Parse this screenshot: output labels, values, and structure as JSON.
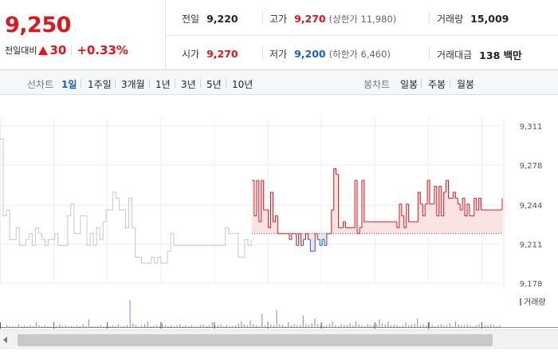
{
  "summary": {
    "current_price": "9,250",
    "change_label": "전일대비",
    "change_value": "30",
    "change_percent": "+0.33%"
  },
  "stats": {
    "prev_close_label": "전일",
    "prev_close": "9,220",
    "high_label": "고가",
    "high": "9,270",
    "upper_limit": "(상한가 11,980)",
    "volume_label": "거래량",
    "volume": "15,009",
    "open_label": "시가",
    "open": "9,270",
    "low_label": "저가",
    "low": "9,200",
    "lower_limit": "(하한가 6,460)",
    "amount_label": "거래대금",
    "amount": "138 백만"
  },
  "toolbar": {
    "line_chart_label": "선차트",
    "periods": [
      "1일",
      "1주일",
      "3개월",
      "1년",
      "3년",
      "5년",
      "10년"
    ],
    "active_period": "1일",
    "candle_chart_label": "봉차트",
    "candles": [
      "일봉",
      "주봉",
      "월봉"
    ]
  },
  "colors": {
    "up": "#e0161e",
    "down": "#1c5fc4",
    "previous_day_line": "#c8c8c8",
    "up_fill": "#fbe3e3",
    "volume_bar": "#8c7fc9"
  },
  "chart_data": {
    "type": "line",
    "y_ticks": [
      "9,311",
      "9,278",
      "9,244",
      "9,211",
      "9,178"
    ],
    "ylim": [
      9178,
      9311
    ],
    "reference_price": 9220,
    "legend": "거래량",
    "previous_day_series": [
      9300,
      9235,
      9240,
      9215,
      9215,
      9225,
      9210,
      9210,
      9215,
      9220,
      9210,
      9225,
      9220,
      9215,
      9210,
      9215,
      9215,
      9220,
      9210,
      9210,
      9210,
      9235,
      9245,
      9220,
      9220,
      9235,
      9235,
      9210,
      9220,
      9210,
      9225,
      9215,
      9230,
      9240,
      9240,
      9255,
      9250,
      9240,
      9240,
      9225,
      9250,
      9225,
      9200,
      9200,
      9195,
      9195,
      9195,
      9200,
      9195,
      9200,
      9195,
      9195,
      9205,
      9220,
      9210,
      9210,
      9210,
      9210,
      9210,
      9210,
      9210,
      9210,
      9210,
      9210,
      9210,
      9210,
      9210,
      9210,
      9210,
      9210,
      9225,
      9220,
      9220,
      9220,
      9200,
      9200,
      9215,
      9210,
      9215
    ],
    "today_series": [
      9265,
      9235,
      9265,
      9230,
      9265,
      9240,
      9240,
      9225,
      9255,
      9230,
      9235,
      9220,
      9220,
      9220,
      9220,
      9220,
      9215,
      9220,
      9220,
      9210,
      9220,
      9210,
      9215,
      9220,
      9215,
      9205,
      9205,
      9220,
      9215,
      9210,
      9215,
      9210,
      9220,
      9220,
      9240,
      9275,
      9270,
      9225,
      9225,
      9230,
      9225,
      9225,
      9225,
      9225,
      9265,
      9220,
      9225,
      9265,
      9230,
      9230,
      9230,
      9230,
      9230,
      9230,
      9230,
      9230,
      9230,
      9230,
      9230,
      9230,
      9230,
      9230,
      9225,
      9245,
      9235,
      9225,
      9245,
      9230,
      9230,
      9230,
      9230,
      9255,
      9245,
      9235,
      9245,
      9265,
      9245,
      9245,
      9260,
      9235,
      9260,
      9235,
      9255,
      9265,
      9250,
      9250,
      9255,
      9250,
      9245,
      9240,
      9250,
      9235,
      9245,
      9235,
      9235,
      9250,
      9240,
      9250,
      9240,
      9240,
      9240,
      9240,
      9240,
      9240,
      9240,
      9240,
      9240,
      9250
    ],
    "volume": [
      2,
      1,
      1,
      0,
      3,
      1,
      2,
      1,
      2,
      1,
      5,
      2,
      1,
      2,
      1,
      1,
      2,
      1,
      3,
      1,
      2,
      1,
      1,
      1,
      2,
      1,
      3,
      1,
      8,
      1,
      1,
      1,
      2,
      1,
      1,
      1,
      2,
      1,
      3,
      1,
      1,
      2,
      28,
      4,
      2,
      1,
      2,
      3,
      6,
      1,
      1,
      2,
      1,
      4,
      2,
      1,
      2,
      1,
      2,
      3,
      1,
      2,
      1,
      2,
      1,
      1,
      2,
      3,
      1,
      2,
      5,
      2,
      2,
      3,
      1,
      2,
      1,
      1,
      2,
      4,
      6,
      3,
      2,
      7,
      3,
      2,
      1,
      14,
      2,
      6,
      3,
      2,
      18,
      3,
      2,
      1,
      5,
      2,
      3,
      2,
      2,
      12,
      3,
      2,
      4,
      9,
      3,
      2,
      1,
      2,
      3,
      6,
      2,
      1,
      3,
      2,
      2,
      4,
      2,
      6,
      3,
      2,
      1,
      3,
      2,
      2,
      3,
      8,
      4,
      3,
      6,
      2,
      3,
      2,
      1,
      2,
      5,
      2,
      3,
      4,
      9,
      2,
      3,
      2,
      5,
      2,
      1,
      2,
      3,
      2,
      2,
      4,
      1,
      6,
      3,
      2,
      2,
      3,
      2,
      1,
      2,
      3,
      1,
      2,
      2,
      3,
      2,
      1,
      2
    ]
  }
}
